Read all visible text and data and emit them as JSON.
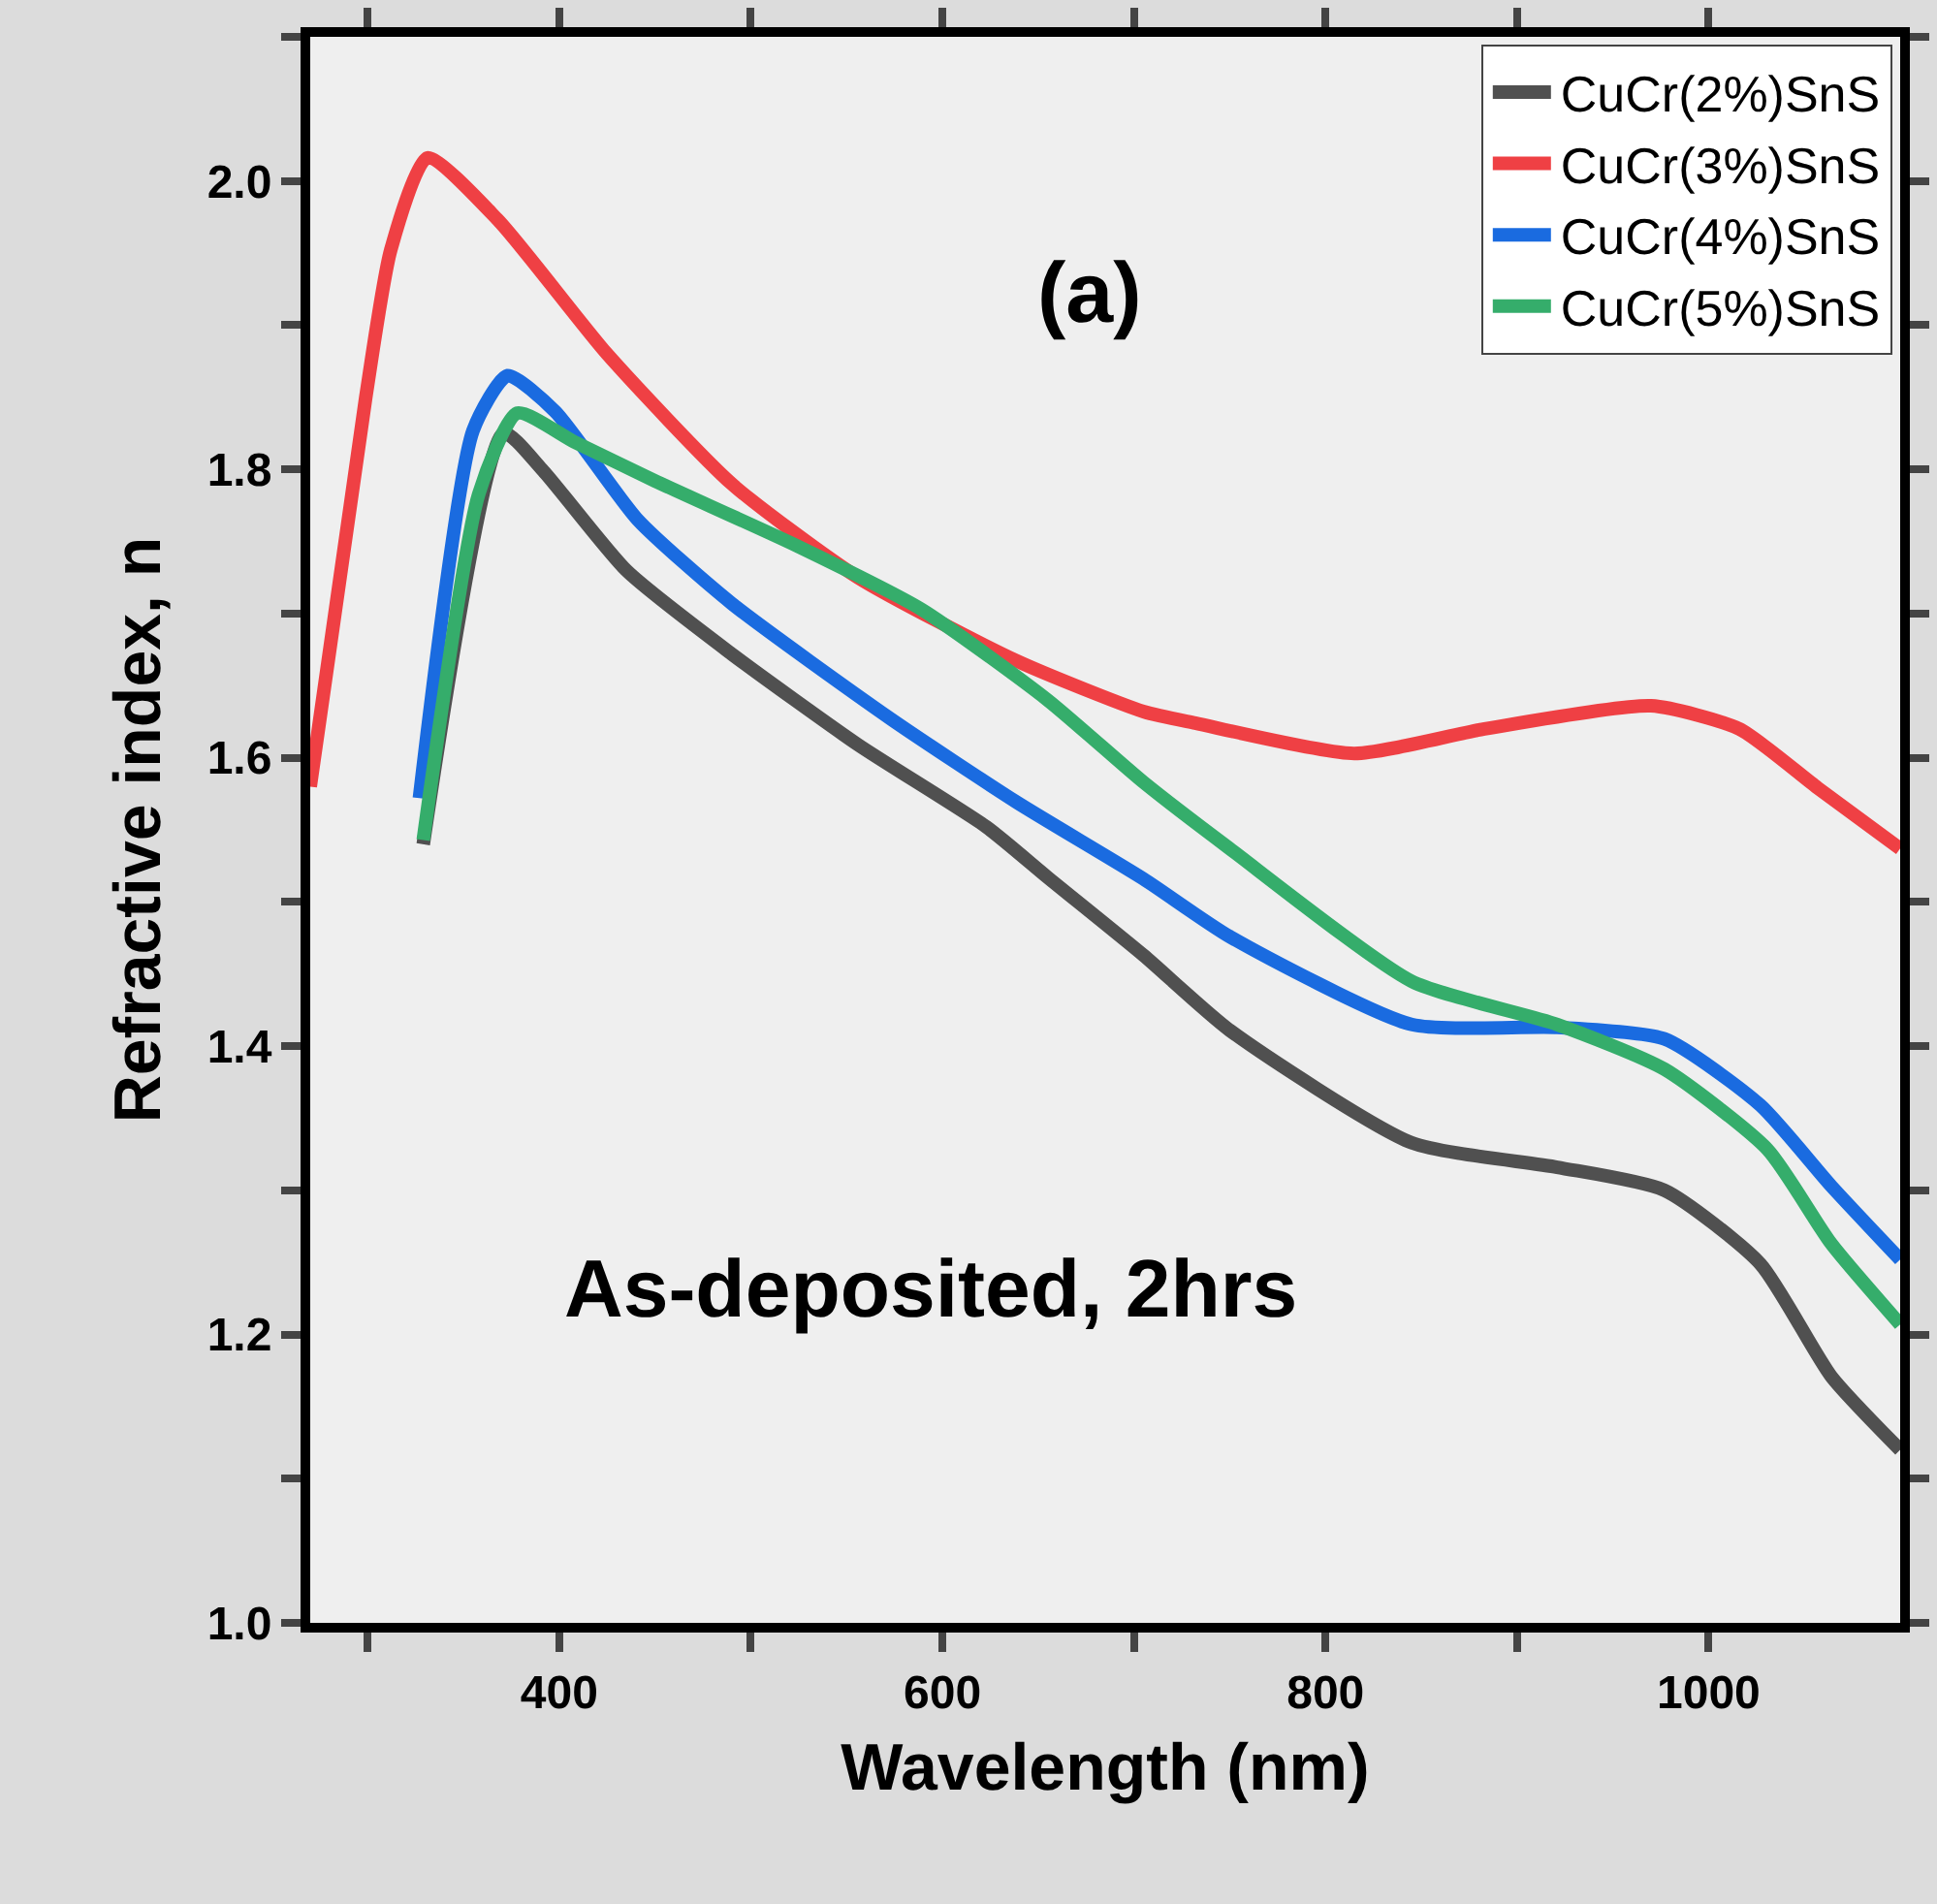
{
  "chart_data": {
    "type": "line",
    "xlabel": "Wavelength (nm)",
    "ylabel": "Refractive index, n",
    "annotations": [
      "(a)",
      "As-deposited, 2hrs"
    ],
    "xlim": [
      270,
      1100
    ],
    "ylim": [
      1.0,
      2.1
    ],
    "xticks": [
      {
        "value": 300,
        "label": null
      },
      400,
      {
        "value": 500,
        "label": null
      },
      600,
      {
        "value": 700,
        "label": null
      },
      800,
      {
        "value": 900,
        "label": null
      },
      1000
    ],
    "yticks": [
      {
        "value": 1.0,
        "label": "1.0"
      },
      {
        "value": 1.1,
        "label": null
      },
      {
        "value": 1.2,
        "label": "1.2"
      },
      {
        "value": 1.3,
        "label": null
      },
      {
        "value": 1.4,
        "label": "1.4"
      },
      {
        "value": 1.5,
        "label": null
      },
      {
        "value": 1.6,
        "label": "1.6"
      },
      {
        "value": 1.7,
        "label": null
      },
      {
        "value": 1.8,
        "label": "1.8"
      },
      {
        "value": 1.9,
        "label": null
      },
      {
        "value": 2.0,
        "label": "2.0"
      },
      {
        "value": 2.1,
        "label": null
      }
    ],
    "legend": "top right",
    "grid": false,
    "marker": "none",
    "line_style": "solid",
    "series": [
      {
        "name": "CuCr(2%)SnS",
        "color": "#505050",
        "x": [
          329,
          371,
          391,
          435,
          490,
          556,
          623,
          655,
          705,
          750,
          845,
          921,
          977,
          1027,
          1064,
          1100
        ],
        "values": [
          1.54,
          1.825,
          1.8,
          1.73,
          1.672,
          1.609,
          1.552,
          1.517,
          1.463,
          1.411,
          1.333,
          1.316,
          1.3,
          1.249,
          1.171,
          1.12
        ]
      },
      {
        "name": "CuCr(3%)SnS",
        "color": "#ef4044",
        "x": [
          270,
          299,
          312,
          331,
          368,
          425,
          490,
          556,
          639,
          705,
          732,
          815,
          883,
          970,
          1016,
          1057,
          1100
        ],
        "values": [
          1.58,
          1.85,
          1.952,
          2.016,
          1.973,
          1.88,
          1.79,
          1.725,
          1.667,
          1.632,
          1.624,
          1.603,
          1.62,
          1.636,
          1.62,
          1.579,
          1.537
        ]
      },
      {
        "name": "CuCr(4%)SnS",
        "color": "#1a6be0",
        "x": [
          327,
          355,
          373,
          398,
          441,
          490,
          573,
          639,
          705,
          750,
          845,
          921,
          977,
          1027,
          1064,
          1100
        ],
        "values": [
          1.572,
          1.827,
          1.865,
          1.84,
          1.765,
          1.707,
          1.627,
          1.569,
          1.516,
          1.476,
          1.415,
          1.413,
          1.405,
          1.359,
          1.303,
          1.252
        ]
      },
      {
        "name": "CuCr(5%)SnS",
        "color": "#35ad6b",
        "x": [
          329,
          358,
          378,
          408,
          450,
          524,
          589,
          655,
          705,
          750,
          845,
          921,
          977,
          1031,
          1064,
          1100
        ],
        "values": [
          1.543,
          1.783,
          1.839,
          1.819,
          1.792,
          1.747,
          1.703,
          1.64,
          1.583,
          1.537,
          1.445,
          1.415,
          1.384,
          1.328,
          1.263,
          1.207
        ]
      }
    ]
  }
}
